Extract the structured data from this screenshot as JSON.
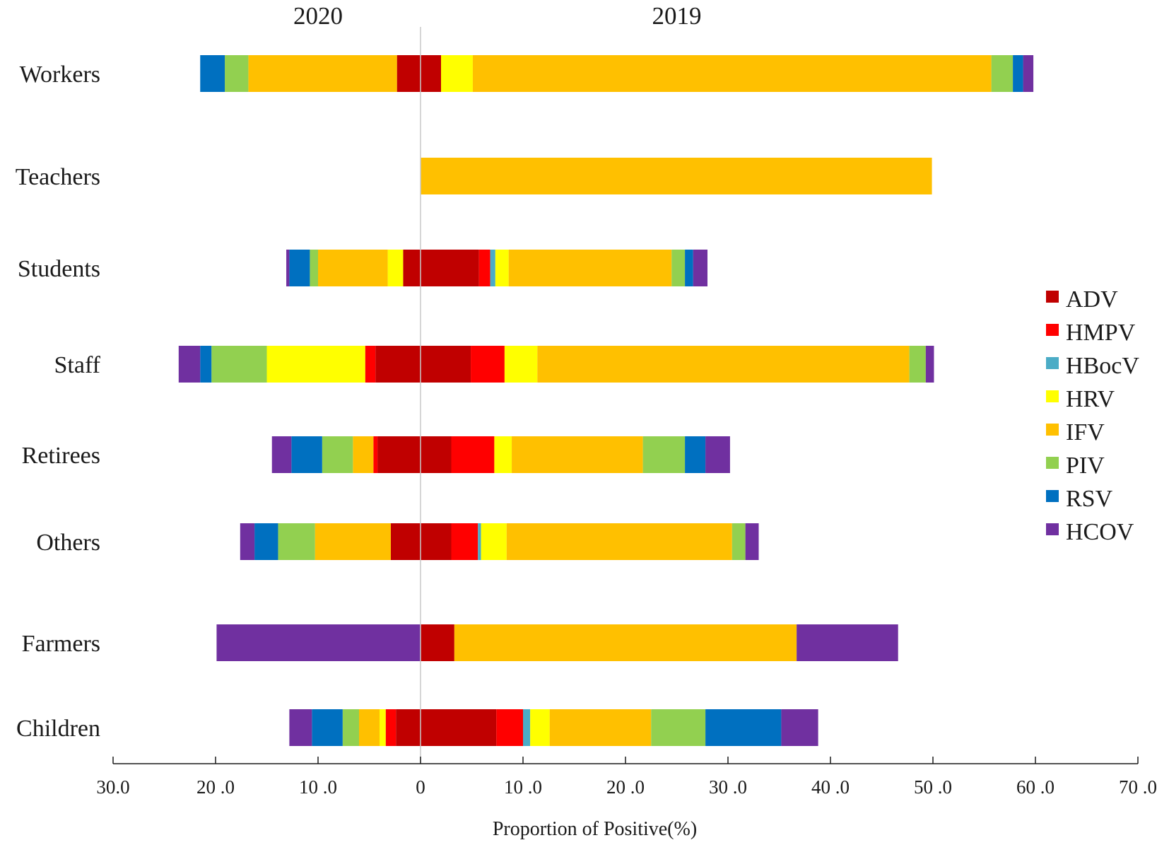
{
  "chart_data": {
    "type": "bar",
    "orientation": "horizontal-diverging-stacked",
    "left_label": "2020",
    "right_label": "2019",
    "xlabel": "Proportion  of Positive(%)",
    "xlim": [
      -30,
      70
    ],
    "ticks": [
      {
        "value": -30,
        "label": "30.0"
      },
      {
        "value": -20,
        "label": "20 .0"
      },
      {
        "value": -10,
        "label": "10 .0"
      },
      {
        "value": 0,
        "label": "0"
      },
      {
        "value": 10,
        "label": "10 .0"
      },
      {
        "value": 20,
        "label": "20 .0"
      },
      {
        "value": 30,
        "label": "30 .0"
      },
      {
        "value": 40,
        "label": "40 .0"
      },
      {
        "value": 50,
        "label": "50 .0"
      },
      {
        "value": 60,
        "label": "60 .0"
      },
      {
        "value": 70,
        "label": "70 .0"
      }
    ],
    "viruses": [
      "ADV",
      "HMPV",
      "HBocV",
      "HRV",
      "IFV",
      "PIV",
      "RSV",
      "HCOV"
    ],
    "colors": {
      "ADV": "#C00000",
      "HMPV": "#FF0000",
      "HBocV": "#4BACC6",
      "HRV": "#FFFF00",
      "IFV": "#FFC000",
      "PIV": "#92D050",
      "RSV": "#0070C0",
      "HCOV": "#7030A0"
    },
    "categories": [
      {
        "name": "Workers",
        "y2020": [
          2.3,
          0,
          0,
          0,
          14.5,
          2.3,
          2.4,
          0
        ],
        "y2019": [
          2.0,
          0,
          0,
          3.1,
          50.6,
          2.1,
          1.0,
          1.0
        ]
      },
      {
        "name": "Teachers",
        "y2020": [
          0,
          0,
          0,
          0,
          0,
          0,
          0,
          0
        ],
        "y2019": [
          0,
          0,
          0,
          0,
          49.9,
          0,
          0,
          0
        ]
      },
      {
        "name": "Students",
        "y2020": [
          1.7,
          0,
          0,
          1.5,
          6.8,
          0.8,
          2.0,
          0.3
        ],
        "y2019": [
          5.7,
          1.1,
          0.5,
          1.3,
          15.9,
          1.3,
          0.8,
          1.4
        ]
      },
      {
        "name": "Staff",
        "y2020": [
          4.4,
          1.0,
          0,
          9.6,
          0,
          5.4,
          1.1,
          2.1
        ],
        "y2019": [
          4.9,
          3.3,
          0,
          3.2,
          36.3,
          1.6,
          0,
          0.8
        ]
      },
      {
        "name": "Retirees",
        "y2020": [
          4.2,
          0.4,
          0,
          0,
          2.0,
          3.0,
          3.0,
          1.9
        ],
        "y2019": [
          3.0,
          4.2,
          0,
          1.7,
          12.8,
          4.1,
          2.0,
          2.4
        ]
      },
      {
        "name": "Others",
        "y2020": [
          2.9,
          0,
          0,
          0,
          7.4,
          3.6,
          2.3,
          1.4
        ],
        "y2019": [
          3.0,
          2.6,
          0.3,
          2.5,
          22.0,
          1.3,
          0,
          1.3
        ]
      },
      {
        "name": "Farmers",
        "y2020": [
          0,
          0,
          0,
          0,
          0,
          0,
          0,
          19.9
        ],
        "y2019": [
          3.3,
          0,
          0,
          0,
          33.4,
          0,
          0,
          9.9
        ]
      },
      {
        "name": "Children",
        "y2020": [
          2.4,
          1.0,
          0,
          0.6,
          2.0,
          1.6,
          3.0,
          2.2
        ],
        "y2019": [
          7.4,
          2.6,
          0.7,
          1.9,
          9.9,
          5.3,
          7.4,
          3.6
        ]
      }
    ]
  }
}
